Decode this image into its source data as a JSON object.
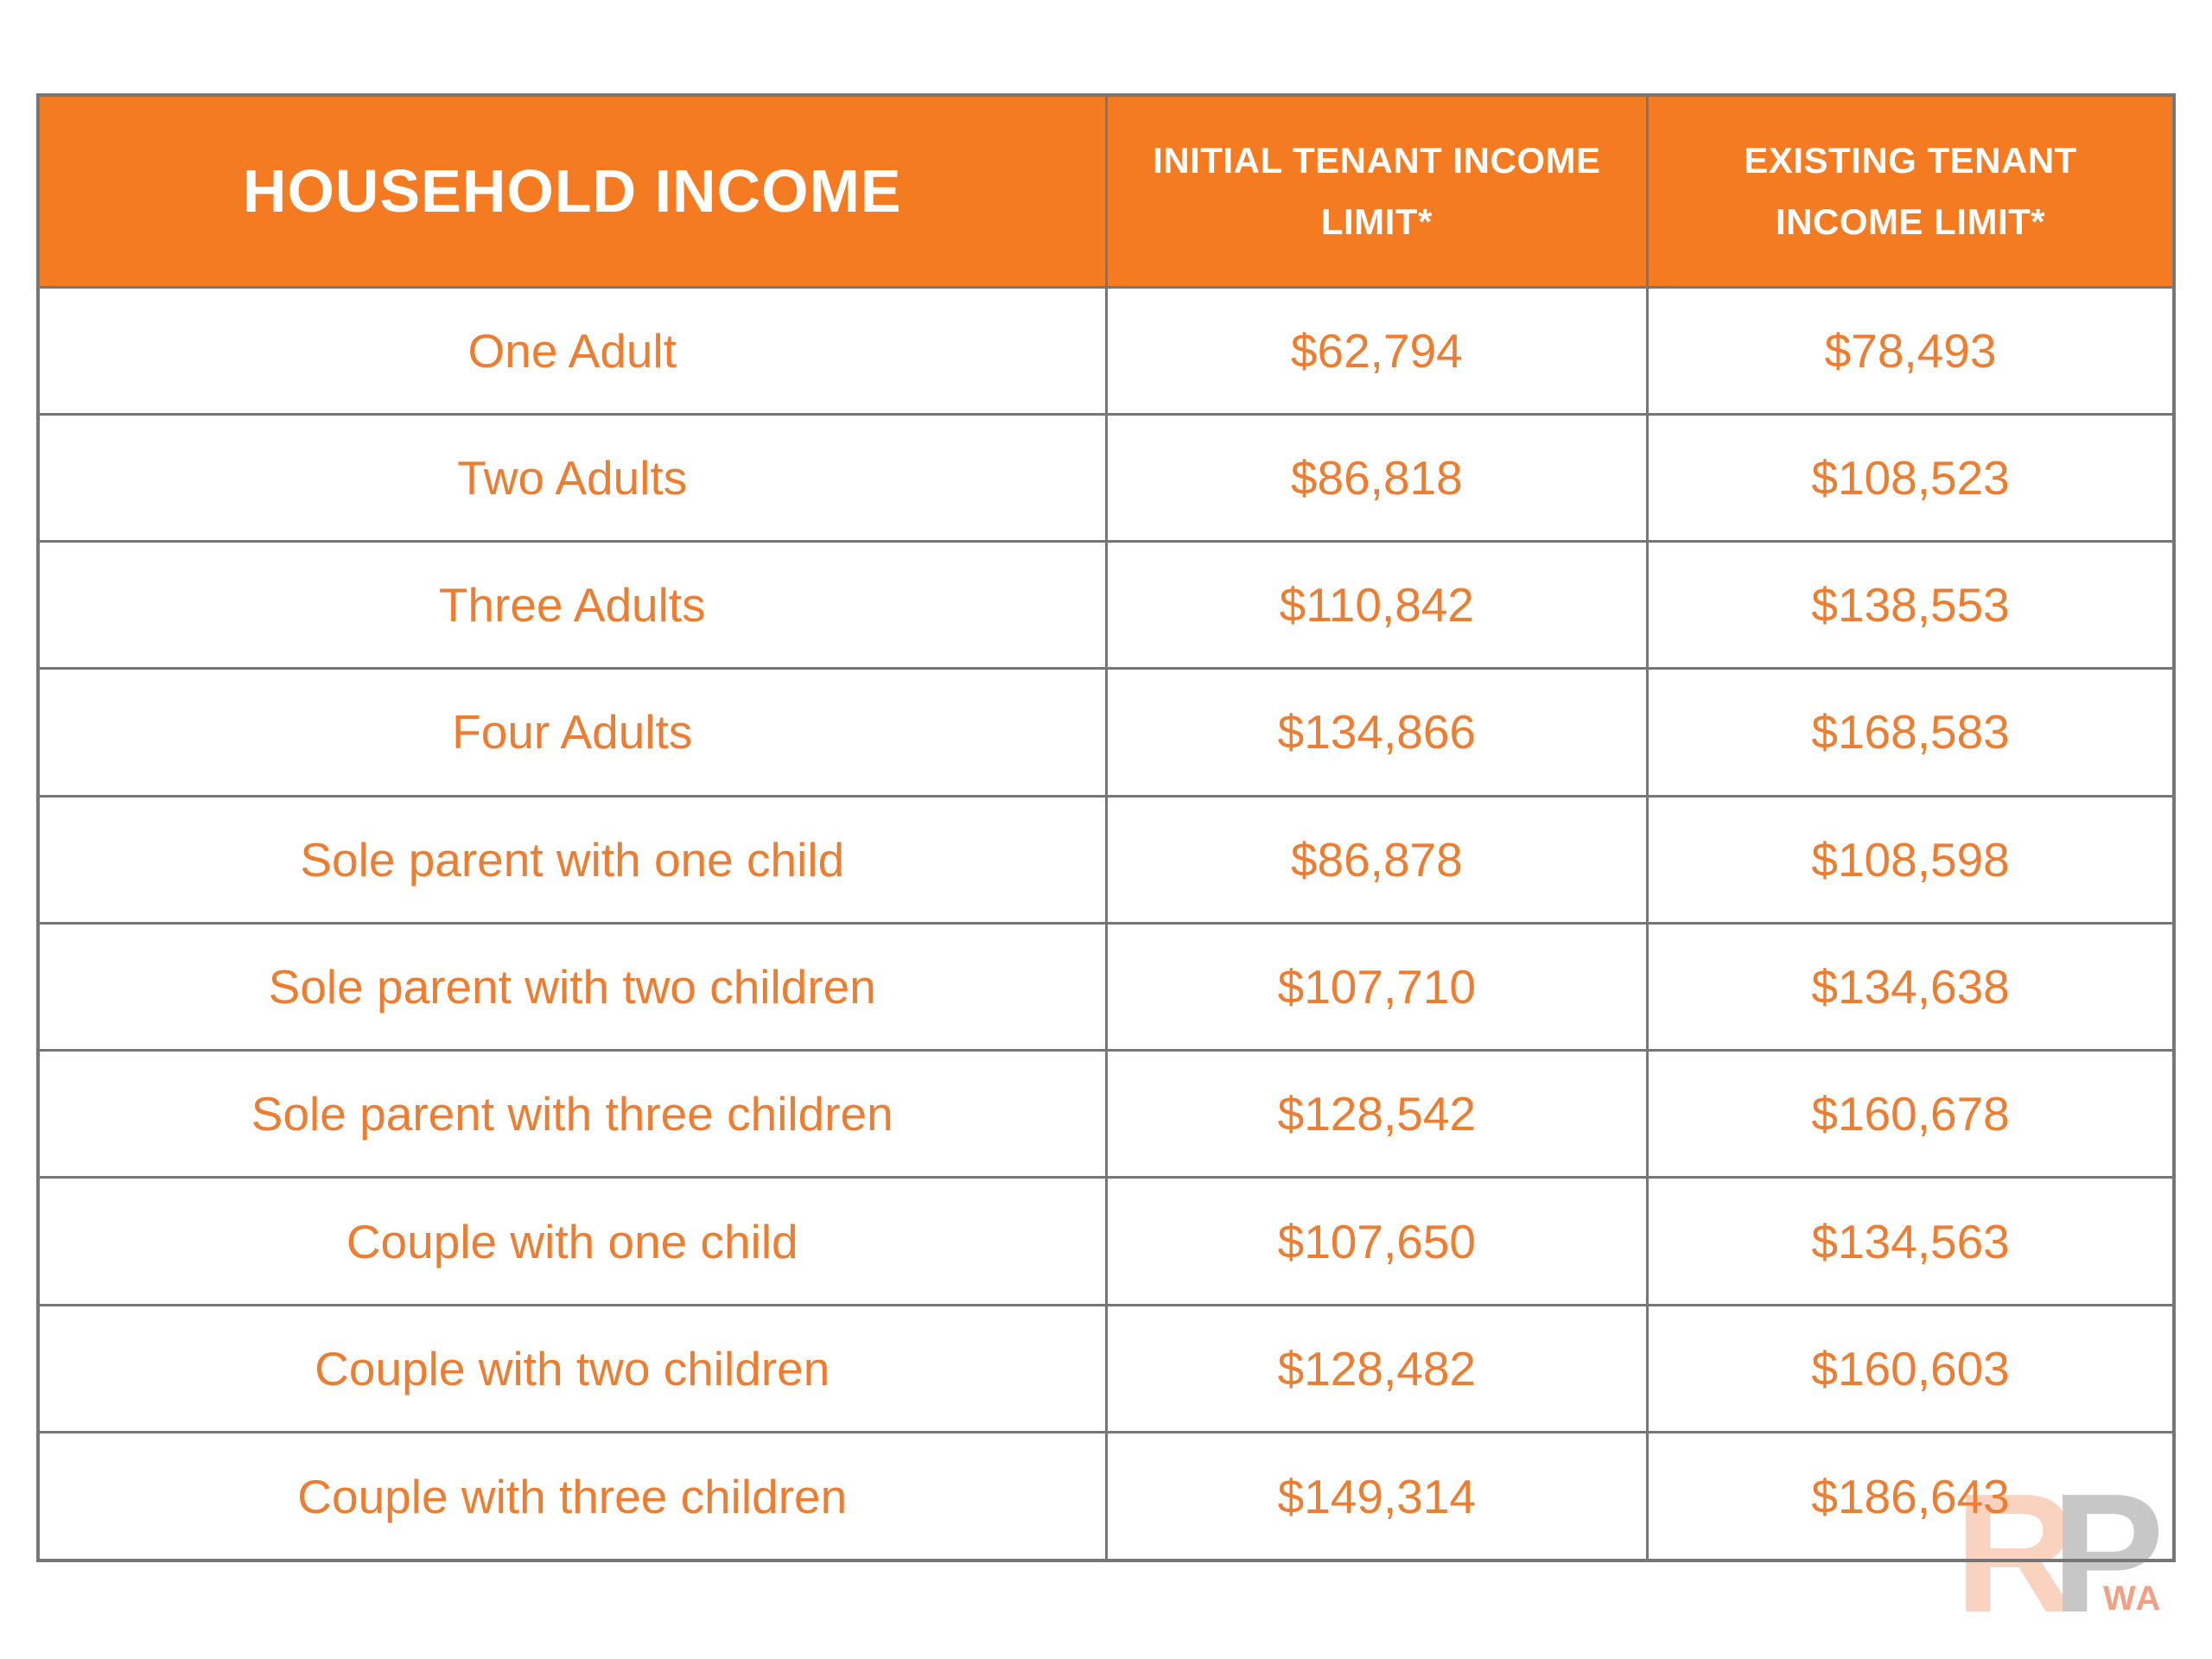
{
  "chart_data": {
    "type": "table",
    "columns": [
      "HOUSEHOLD INCOME",
      "INITIAL TENANT INCOME LIMIT*",
      "EXISTING TENANT INCOME LIMIT*"
    ],
    "rows": [
      [
        "One Adult",
        "$62,794",
        "$78,493"
      ],
      [
        "Two Adults",
        "$86,818",
        "$108,523"
      ],
      [
        "Three Adults",
        "$110,842",
        "$138,553"
      ],
      [
        "Four Adults",
        "$134,866",
        "$168,583"
      ],
      [
        "Sole parent with one child",
        "$86,878",
        "$108,598"
      ],
      [
        "Sole parent with two children",
        "$107,710",
        "$134,638"
      ],
      [
        "Sole parent with three children",
        "$128,542",
        "$160,678"
      ],
      [
        "Couple with one child",
        "$107,650",
        "$134,563"
      ],
      [
        "Couple with two children",
        "$128,482",
        "$160,603"
      ],
      [
        "Couple with three children",
        "$149,314",
        "$186,643"
      ]
    ],
    "title": "",
    "legend": "none",
    "grid": "on"
  },
  "watermark": {
    "r": "R",
    "p": "P",
    "wa": "WA"
  },
  "colors": {
    "header_bg": "#F47B21",
    "header_text": "#FFFFFF",
    "cell_text": "#ED7D31",
    "border": "#767676",
    "watermark_r": "#FAD2C0",
    "watermark_p": "#C7C7C8",
    "watermark_wa": "#F2A084"
  }
}
